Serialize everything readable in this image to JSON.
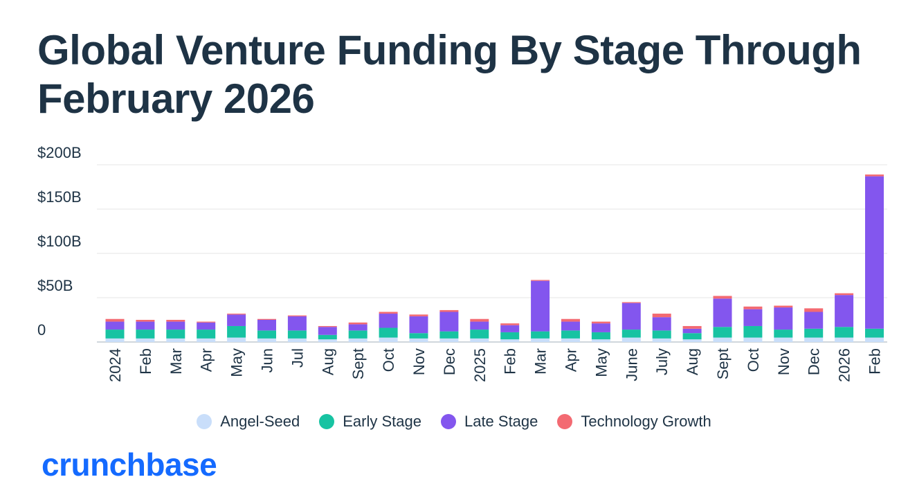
{
  "title": "Global Venture Funding By Stage Through February 2026",
  "logo_text": "crunchbase",
  "colors": {
    "angel_seed": "#c9defa",
    "early_stage": "#17c3a2",
    "late_stage": "#8356ee",
    "technology_growth": "#f36a72",
    "grid": "#e6e6e6",
    "axis": "#cfd6dc",
    "logo": "#146aff"
  },
  "legend": [
    {
      "label": "Angel-Seed",
      "color": "#c9defa"
    },
    {
      "label": "Early Stage",
      "color": "#17c3a2"
    },
    {
      "label": "Late Stage",
      "color": "#8356ee"
    },
    {
      "label": "Technology Growth",
      "color": "#f36a72"
    }
  ],
  "chart_data": {
    "type": "bar",
    "stacked": true,
    "title": "Global Venture Funding By Stage Through February 2026",
    "ylim": [
      0,
      200
    ],
    "yticks": [
      0,
      50,
      100,
      150,
      200
    ],
    "ytick_labels": [
      "0",
      "$50B",
      "$100B",
      "$150B",
      "$200B"
    ],
    "grid": true,
    "legend_position": "bottom",
    "categories": [
      "2024",
      "Feb",
      "Mar",
      "Apr",
      "May",
      "Jun",
      "Jul",
      "Aug",
      "Sept",
      "Oct",
      "Nov",
      "Dec",
      "2025",
      "Feb",
      "Mar",
      "Apr",
      "May",
      "June",
      "July",
      "Aug",
      "Sept",
      "Oct",
      "Nov",
      "Dec",
      "2026",
      "Feb"
    ],
    "series": [
      {
        "name": "Angel-Seed",
        "values": [
          4,
          4,
          4,
          4,
          5,
          4,
          4,
          3,
          4,
          5,
          4,
          4,
          4,
          3,
          4,
          4,
          3,
          5,
          4,
          3,
          5,
          5,
          5,
          5,
          5,
          5
        ]
      },
      {
        "name": "Early Stage",
        "values": [
          10,
          10,
          10,
          10,
          13,
          9,
          9,
          5,
          9,
          11,
          6,
          8,
          10,
          8,
          8,
          9,
          8,
          9,
          9,
          7,
          12,
          13,
          9,
          10,
          12,
          10
        ]
      },
      {
        "name": "Late Stage",
        "values": [
          9,
          9,
          9,
          8,
          13,
          12,
          16,
          9,
          7,
          16,
          19,
          22,
          9,
          8,
          57,
          10,
          10,
          30,
          15,
          5,
          32,
          19,
          25,
          19,
          36,
          172
        ]
      },
      {
        "name": "Technology Growth",
        "values": [
          3,
          2,
          2,
          1,
          1,
          1,
          1,
          1,
          2,
          2,
          2,
          2,
          3,
          2,
          1,
          3,
          2,
          1,
          4,
          3,
          3,
          3,
          2,
          4,
          2,
          2
        ]
      }
    ]
  }
}
